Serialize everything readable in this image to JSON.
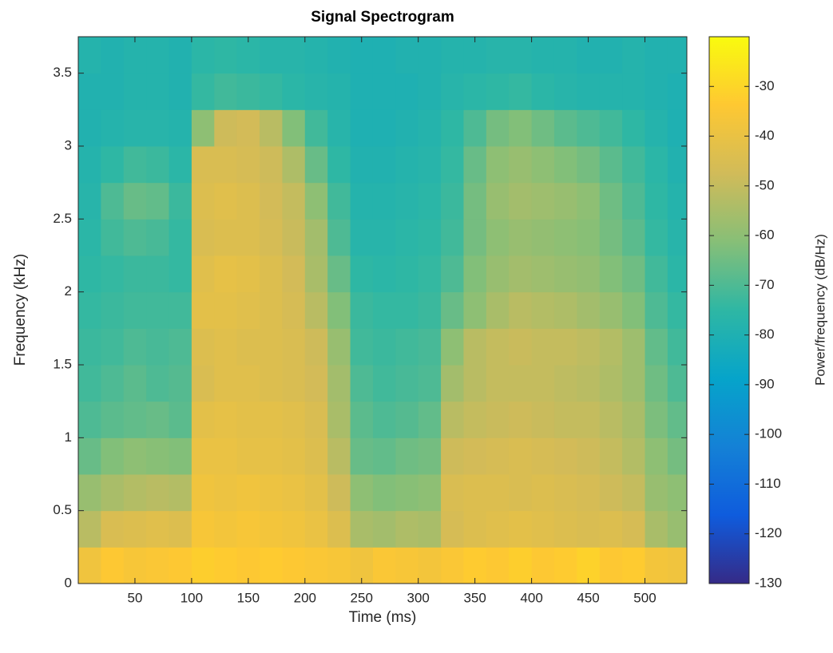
{
  "chart_data": {
    "type": "heatmap",
    "title": "Signal Spectrogram",
    "x_label": "Time (ms)",
    "y_label": "Frequency (kHz)",
    "colorbar_label": "Power/frequency (dB/Hz)",
    "x": [
      10,
      30,
      50,
      70,
      90,
      110,
      130,
      150,
      170,
      190,
      210,
      230,
      250,
      270,
      290,
      310,
      330,
      350,
      370,
      390,
      410,
      430,
      450,
      470,
      490,
      510,
      530
    ],
    "y": [
      0.125,
      0.375,
      0.625,
      0.875,
      1.125,
      1.375,
      1.625,
      1.875,
      2.125,
      2.375,
      2.625,
      2.875,
      3.125,
      3.375,
      3.625
    ],
    "z": [
      [
        -38,
        -34,
        -36,
        -35,
        -34,
        -32,
        -33,
        -34,
        -33,
        -34,
        -35,
        -36,
        -38,
        -35,
        -36,
        -37,
        -35,
        -33,
        -34,
        -32,
        -34,
        -33,
        -31,
        -34,
        -33,
        -37,
        -38
      ],
      [
        -52,
        -45,
        -44,
        -43,
        -44,
        -36,
        -37,
        -36,
        -37,
        -38,
        -40,
        -44,
        -55,
        -56,
        -54,
        -55,
        -46,
        -44,
        -43,
        -42,
        -43,
        -44,
        -45,
        -44,
        -46,
        -55,
        -58
      ],
      [
        -58,
        -55,
        -53,
        -52,
        -53,
        -38,
        -39,
        -38,
        -39,
        -40,
        -42,
        -48,
        -60,
        -62,
        -61,
        -60,
        -45,
        -44,
        -44,
        -45,
        -44,
        -45,
        -46,
        -48,
        -50,
        -58,
        -60
      ],
      [
        -66,
        -62,
        -60,
        -61,
        -62,
        -40,
        -40,
        -41,
        -41,
        -42,
        -44,
        -52,
        -66,
        -67,
        -65,
        -64,
        -48,
        -47,
        -46,
        -45,
        -46,
        -47,
        -48,
        -50,
        -53,
        -60,
        -64
      ],
      [
        -70,
        -68,
        -67,
        -66,
        -68,
        -42,
        -41,
        -42,
        -42,
        -43,
        -45,
        -55,
        -68,
        -70,
        -69,
        -67,
        -52,
        -50,
        -49,
        -48,
        -49,
        -50,
        -50,
        -52,
        -55,
        -63,
        -67
      ],
      [
        -72,
        -70,
        -68,
        -70,
        -69,
        -45,
        -43,
        -43,
        -44,
        -45,
        -47,
        -56,
        -70,
        -72,
        -71,
        -70,
        -56,
        -52,
        -50,
        -50,
        -50,
        -51,
        -52,
        -54,
        -57,
        -65,
        -70
      ],
      [
        -73,
        -72,
        -70,
        -71,
        -70,
        -44,
        -43,
        -44,
        -44,
        -45,
        -48,
        -58,
        -72,
        -73,
        -72,
        -71,
        -60,
        -52,
        -50,
        -49,
        -50,
        -50,
        -51,
        -53,
        -57,
        -67,
        -72
      ],
      [
        -74,
        -73,
        -72,
        -72,
        -72,
        -42,
        -42,
        -43,
        -44,
        -46,
        -52,
        -62,
        -73,
        -74,
        -74,
        -73,
        -66,
        -60,
        -55,
        -52,
        -53,
        -54,
        -56,
        -58,
        -62,
        -70,
        -74
      ],
      [
        -75,
        -74,
        -73,
        -73,
        -74,
        -43,
        -41,
        -42,
        -44,
        -47,
        -55,
        -66,
        -75,
        -76,
        -75,
        -74,
        -70,
        -62,
        -58,
        -56,
        -57,
        -58,
        -59,
        -62,
        -65,
        -72,
        -76
      ],
      [
        -76,
        -72,
        -70,
        -71,
        -74,
        -45,
        -44,
        -44,
        -46,
        -49,
        -56,
        -70,
        -77,
        -77,
        -76,
        -75,
        -72,
        -64,
        -60,
        -58,
        -59,
        -60,
        -61,
        -64,
        -68,
        -74,
        -77
      ],
      [
        -77,
        -70,
        -66,
        -67,
        -73,
        -44,
        -43,
        -44,
        -47,
        -50,
        -60,
        -72,
        -78,
        -78,
        -77,
        -76,
        -73,
        -64,
        -58,
        -56,
        -57,
        -58,
        -60,
        -65,
        -70,
        -75,
        -78
      ],
      [
        -78,
        -75,
        -72,
        -73,
        -76,
        -45,
        -45,
        -46,
        -48,
        -54,
        -66,
        -75,
        -79,
        -79,
        -78,
        -77,
        -74,
        -66,
        -60,
        -58,
        -60,
        -62,
        -64,
        -68,
        -72,
        -76,
        -79
      ],
      [
        -79,
        -78,
        -77,
        -77,
        -78,
        -60,
        -48,
        -47,
        -52,
        -62,
        -72,
        -77,
        -80,
        -80,
        -79,
        -78,
        -75,
        -70,
        -64,
        -62,
        -65,
        -68,
        -70,
        -72,
        -75,
        -78,
        -80
      ],
      [
        -79,
        -79,
        -78,
        -78,
        -79,
        -74,
        -72,
        -73,
        -74,
        -76,
        -77,
        -78,
        -80,
        -80,
        -80,
        -79,
        -77,
        -76,
        -75,
        -74,
        -76,
        -77,
        -78,
        -78,
        -78,
        -79,
        -80
      ],
      [
        -78,
        -79,
        -78,
        -78,
        -79,
        -76,
        -75,
        -76,
        -77,
        -77,
        -78,
        -79,
        -80,
        -80,
        -79,
        -79,
        -78,
        -78,
        -77,
        -77,
        -78,
        -78,
        -79,
        -79,
        -78,
        -79,
        -79
      ]
    ],
    "xlim": [
      0,
      537
    ],
    "ylim": [
      0,
      3.75
    ],
    "clim": [
      -130,
      -20
    ],
    "xticks": [
      50,
      100,
      150,
      200,
      250,
      300,
      350,
      400,
      450,
      500
    ],
    "yticks": [
      0,
      0.5,
      1,
      1.5,
      2,
      2.5,
      3,
      3.5
    ],
    "cticks": [
      -130,
      -120,
      -110,
      -100,
      -90,
      -80,
      -70,
      -60,
      -50,
      -40,
      -30
    ],
    "colormap": [
      "#352a87",
      "#0f5cdd",
      "#1481d6",
      "#06a4ca",
      "#2eb7a4",
      "#87bf77",
      "#d1bb59",
      "#fec832",
      "#f9fb0e"
    ]
  }
}
